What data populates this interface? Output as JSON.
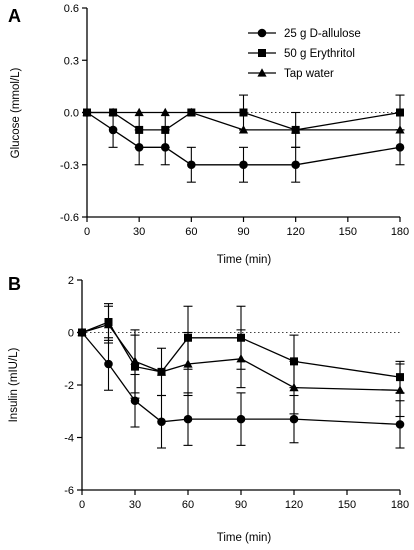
{
  "chart_data": [
    {
      "type": "line",
      "panel_label": "A",
      "xlabel": "Time (min)",
      "ylabel": "Glucose (mmol/L)",
      "xlim": [
        0,
        180
      ],
      "ylim": [
        -0.6,
        0.6
      ],
      "x_ticks": [
        "0",
        "30",
        "60",
        "90",
        "120",
        "150",
        "180"
      ],
      "y_ticks": [
        "-0.6",
        "-0.3",
        "0.0",
        "0.3",
        "0.6"
      ],
      "reference_line": 0,
      "legend": "top-right",
      "x": [
        0,
        15,
        30,
        45,
        60,
        90,
        120,
        180
      ],
      "series": [
        {
          "name": "25 g D-allulose",
          "marker": "circle",
          "values": [
            0,
            -0.1,
            -0.2,
            -0.2,
            -0.3,
            -0.3,
            -0.3,
            -0.2
          ],
          "error": [
            0,
            0.1,
            0.1,
            0.1,
            0.1,
            0.1,
            0.1,
            0.1
          ]
        },
        {
          "name": "50 g Erythritol",
          "marker": "square",
          "values": [
            0,
            0,
            -0.1,
            -0.1,
            0,
            0,
            -0.1,
            0
          ],
          "error": [
            0,
            0,
            0.1,
            0.1,
            0,
            0.1,
            0.1,
            0.1
          ]
        },
        {
          "name": "Tap water",
          "marker": "triangle",
          "values": [
            0,
            0,
            0,
            0,
            0,
            -0.1,
            -0.1,
            -0.1
          ],
          "error": [
            0,
            0,
            0,
            0,
            0,
            0,
            0,
            0
          ]
        }
      ]
    },
    {
      "type": "line",
      "panel_label": "B",
      "xlabel": "Time (min)",
      "ylabel": "Insulin (mIU/L)",
      "xlim": [
        0,
        180
      ],
      "ylim": [
        -6,
        2
      ],
      "x_ticks": [
        "0",
        "30",
        "60",
        "90",
        "120",
        "150",
        "180"
      ],
      "y_ticks": [
        "-6",
        "-4",
        "-2",
        "0",
        "2"
      ],
      "reference_line": 0,
      "x": [
        0,
        15,
        30,
        45,
        60,
        90,
        120,
        180
      ],
      "series": [
        {
          "name": "25 g D-allulose",
          "marker": "circle",
          "values": [
            0,
            -1.2,
            -2.6,
            -3.4,
            -3.3,
            -3.3,
            -3.3,
            -3.5
          ],
          "error": [
            0,
            1.0,
            1.0,
            1.0,
            1.0,
            1.0,
            0.9,
            0.9
          ]
        },
        {
          "name": "50 g Erythritol",
          "marker": "square",
          "values": [
            0,
            0.4,
            -1.3,
            -1.5,
            -0.2,
            -0.2,
            -1.1,
            -1.7
          ],
          "error": [
            0,
            0.7,
            1.2,
            0,
            1.2,
            1.2,
            1.0,
            0.6
          ]
        },
        {
          "name": "Tap water",
          "marker": "triangle",
          "values": [
            0,
            0.3,
            -1.1,
            -1.5,
            -1.2,
            -1.0,
            -2.1,
            -2.2
          ],
          "error": [
            0,
            0.7,
            1.2,
            0.9,
            1.2,
            1.1,
            1.0,
            1.0
          ]
        }
      ]
    }
  ]
}
